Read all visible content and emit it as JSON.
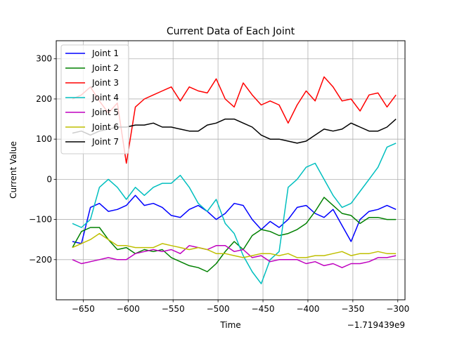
{
  "chart_data": {
    "type": "line",
    "title": "Current Data of Each Joint",
    "xlabel": "Time",
    "ylabel": "Current Value",
    "x_offset_label": "−1.719439e9",
    "xlim": [
      -680,
      -292
    ],
    "ylim": [
      -300,
      345
    ],
    "xticks": [
      -650,
      -600,
      -550,
      -500,
      -450,
      -400,
      -350,
      -300
    ],
    "yticks": [
      -200,
      -100,
      0,
      100,
      200,
      300
    ],
    "grid": true,
    "legend_position": "upper-left",
    "x": [
      -662,
      -652,
      -642,
      -632,
      -622,
      -612,
      -602,
      -592,
      -582,
      -572,
      -562,
      -552,
      -542,
      -532,
      -522,
      -512,
      -502,
      -492,
      -482,
      -472,
      -462,
      -452,
      -442,
      -432,
      -422,
      -412,
      -402,
      -392,
      -382,
      -372,
      -362,
      -352,
      -342,
      -332,
      -322,
      -312,
      -302
    ],
    "series": [
      {
        "name": "Joint 1",
        "color": "#0000ff",
        "values": [
          -155,
          -160,
          -70,
          -60,
          -80,
          -75,
          -65,
          -40,
          -65,
          -60,
          -70,
          -90,
          -95,
          -75,
          -65,
          -80,
          -100,
          -85,
          -60,
          -65,
          -100,
          -125,
          -105,
          -120,
          -100,
          -70,
          -65,
          -85,
          -95,
          -75,
          -115,
          -155,
          -100,
          -80,
          -75,
          -65,
          -75
        ]
      },
      {
        "name": "Joint 2",
        "color": "#008000",
        "values": [
          -170,
          -130,
          -120,
          -120,
          -150,
          -175,
          -170,
          -185,
          -175,
          -180,
          -175,
          -195,
          -205,
          -215,
          -220,
          -230,
          -210,
          -180,
          -155,
          -175,
          -140,
          -125,
          -130,
          -140,
          -135,
          -125,
          -110,
          -80,
          -45,
          -65,
          -85,
          -90,
          -110,
          -95,
          -95,
          -100,
          -100
        ]
      },
      {
        "name": "Joint 3",
        "color": "#ff0000",
        "values": [
          200,
          210,
          230,
          195,
          165,
          190,
          40,
          180,
          200,
          210,
          220,
          230,
          195,
          230,
          220,
          215,
          250,
          200,
          180,
          240,
          210,
          185,
          195,
          185,
          140,
          185,
          220,
          195,
          255,
          230,
          195,
          200,
          170,
          210,
          215,
          180,
          210
        ]
      },
      {
        "name": "Joint 4",
        "color": "#00bfbf",
        "values": [
          -110,
          -120,
          -100,
          -20,
          0,
          -20,
          -50,
          -20,
          -40,
          -20,
          -10,
          -10,
          10,
          -20,
          -60,
          -80,
          -50,
          -110,
          -135,
          -190,
          -230,
          -260,
          -200,
          -180,
          -20,
          0,
          30,
          40,
          0,
          -40,
          -70,
          -60,
          -30,
          0,
          30,
          80,
          90
        ]
      },
      {
        "name": "Joint 5",
        "color": "#bf00bf",
        "values": [
          -200,
          -210,
          -205,
          -200,
          -195,
          -200,
          -200,
          -185,
          -180,
          -175,
          -180,
          -175,
          -185,
          -165,
          -170,
          -175,
          -165,
          -165,
          -180,
          -175,
          -195,
          -190,
          -205,
          -200,
          -200,
          -200,
          -210,
          -205,
          -215,
          -210,
          -220,
          -210,
          -210,
          -205,
          -195,
          -195,
          -190
        ]
      },
      {
        "name": "Joint 6",
        "color": "#bfbf00",
        "values": [
          -170,
          -160,
          -150,
          -135,
          -150,
          -165,
          -165,
          -170,
          -170,
          -170,
          -160,
          -165,
          -170,
          -175,
          -170,
          -175,
          -185,
          -185,
          -190,
          -195,
          -190,
          -185,
          -185,
          -190,
          -185,
          -195,
          -195,
          -190,
          -190,
          -185,
          -180,
          -190,
          -185,
          -185,
          -180,
          -185,
          -185
        ]
      },
      {
        "name": "Joint 7",
        "color": "#000000",
        "values": [
          115,
          120,
          110,
          120,
          125,
          130,
          130,
          135,
          135,
          140,
          130,
          130,
          125,
          120,
          120,
          135,
          140,
          150,
          150,
          140,
          130,
          110,
          100,
          100,
          95,
          90,
          95,
          110,
          125,
          120,
          125,
          140,
          130,
          120,
          120,
          130,
          150
        ]
      }
    ]
  }
}
